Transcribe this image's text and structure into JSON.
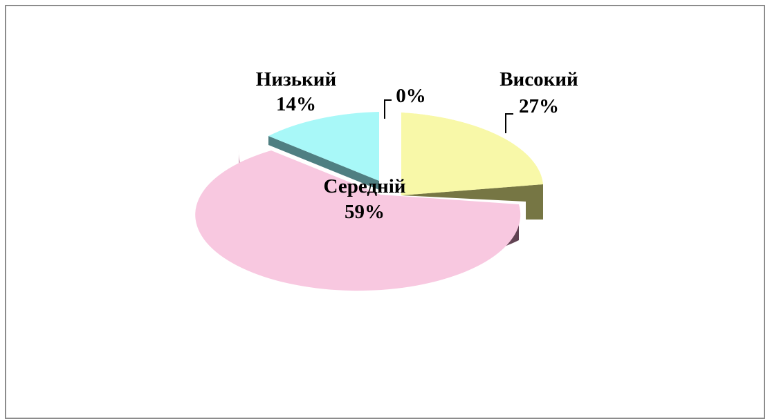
{
  "chart_data": {
    "type": "pie",
    "style": "3d-exploded",
    "slices": [
      {
        "label": "Високий",
        "percent_label": "27%",
        "value": 27,
        "color": "#f8f8a8"
      },
      {
        "label": "Середній",
        "percent_label": "59%",
        "value": 59,
        "color": "#f8c8e0"
      },
      {
        "label": "Низький",
        "percent_label": "14%",
        "value": 14,
        "color": "#a8f8f8"
      },
      {
        "label": "",
        "percent_label": "0%",
        "value": 0,
        "color": "#ffffff"
      }
    ],
    "legend": "none"
  }
}
